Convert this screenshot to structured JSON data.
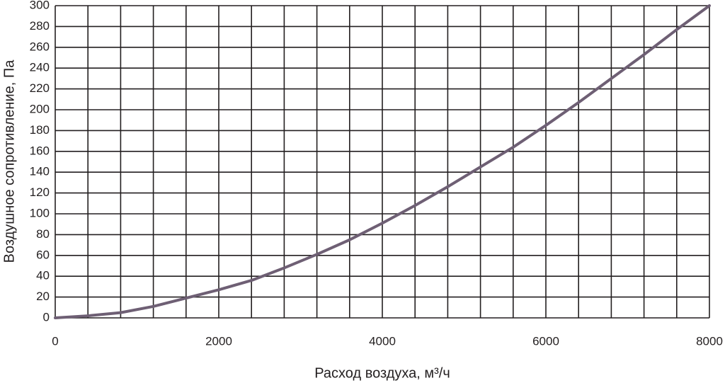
{
  "chart_data": {
    "type": "line",
    "x_label": "Расход воздуха, м³/ч",
    "y_label": "Воздушное сопротивление, Па",
    "x": [
      0,
      400,
      800,
      1200,
      1600,
      2000,
      2400,
      2800,
      3200,
      3600,
      4000,
      4400,
      4800,
      5200,
      5600,
      6000,
      6400,
      6800,
      7200,
      7600,
      8000
    ],
    "series": [
      {
        "color": "#6e5f74",
        "values": [
          0,
          2,
          5,
          11,
          19,
          27,
          36,
          48,
          61,
          75,
          91,
          108,
          126,
          145,
          164,
          185,
          207,
          230,
          253,
          277,
          300
        ]
      }
    ],
    "xlim": [
      0,
      8000
    ],
    "ylim": [
      0,
      300
    ],
    "xticks": [
      0,
      2000,
      4000,
      6000,
      8000
    ],
    "xminor_ticks": [
      400,
      800,
      1200,
      1600,
      2400,
      2800,
      3200,
      3600,
      4400,
      4800,
      5200,
      5600,
      6400,
      6800,
      7200,
      7600
    ],
    "yticks": [
      0,
      20,
      40,
      60,
      80,
      100,
      120,
      140,
      160,
      180,
      200,
      220,
      240,
      260,
      280,
      300
    ],
    "grid": true
  }
}
